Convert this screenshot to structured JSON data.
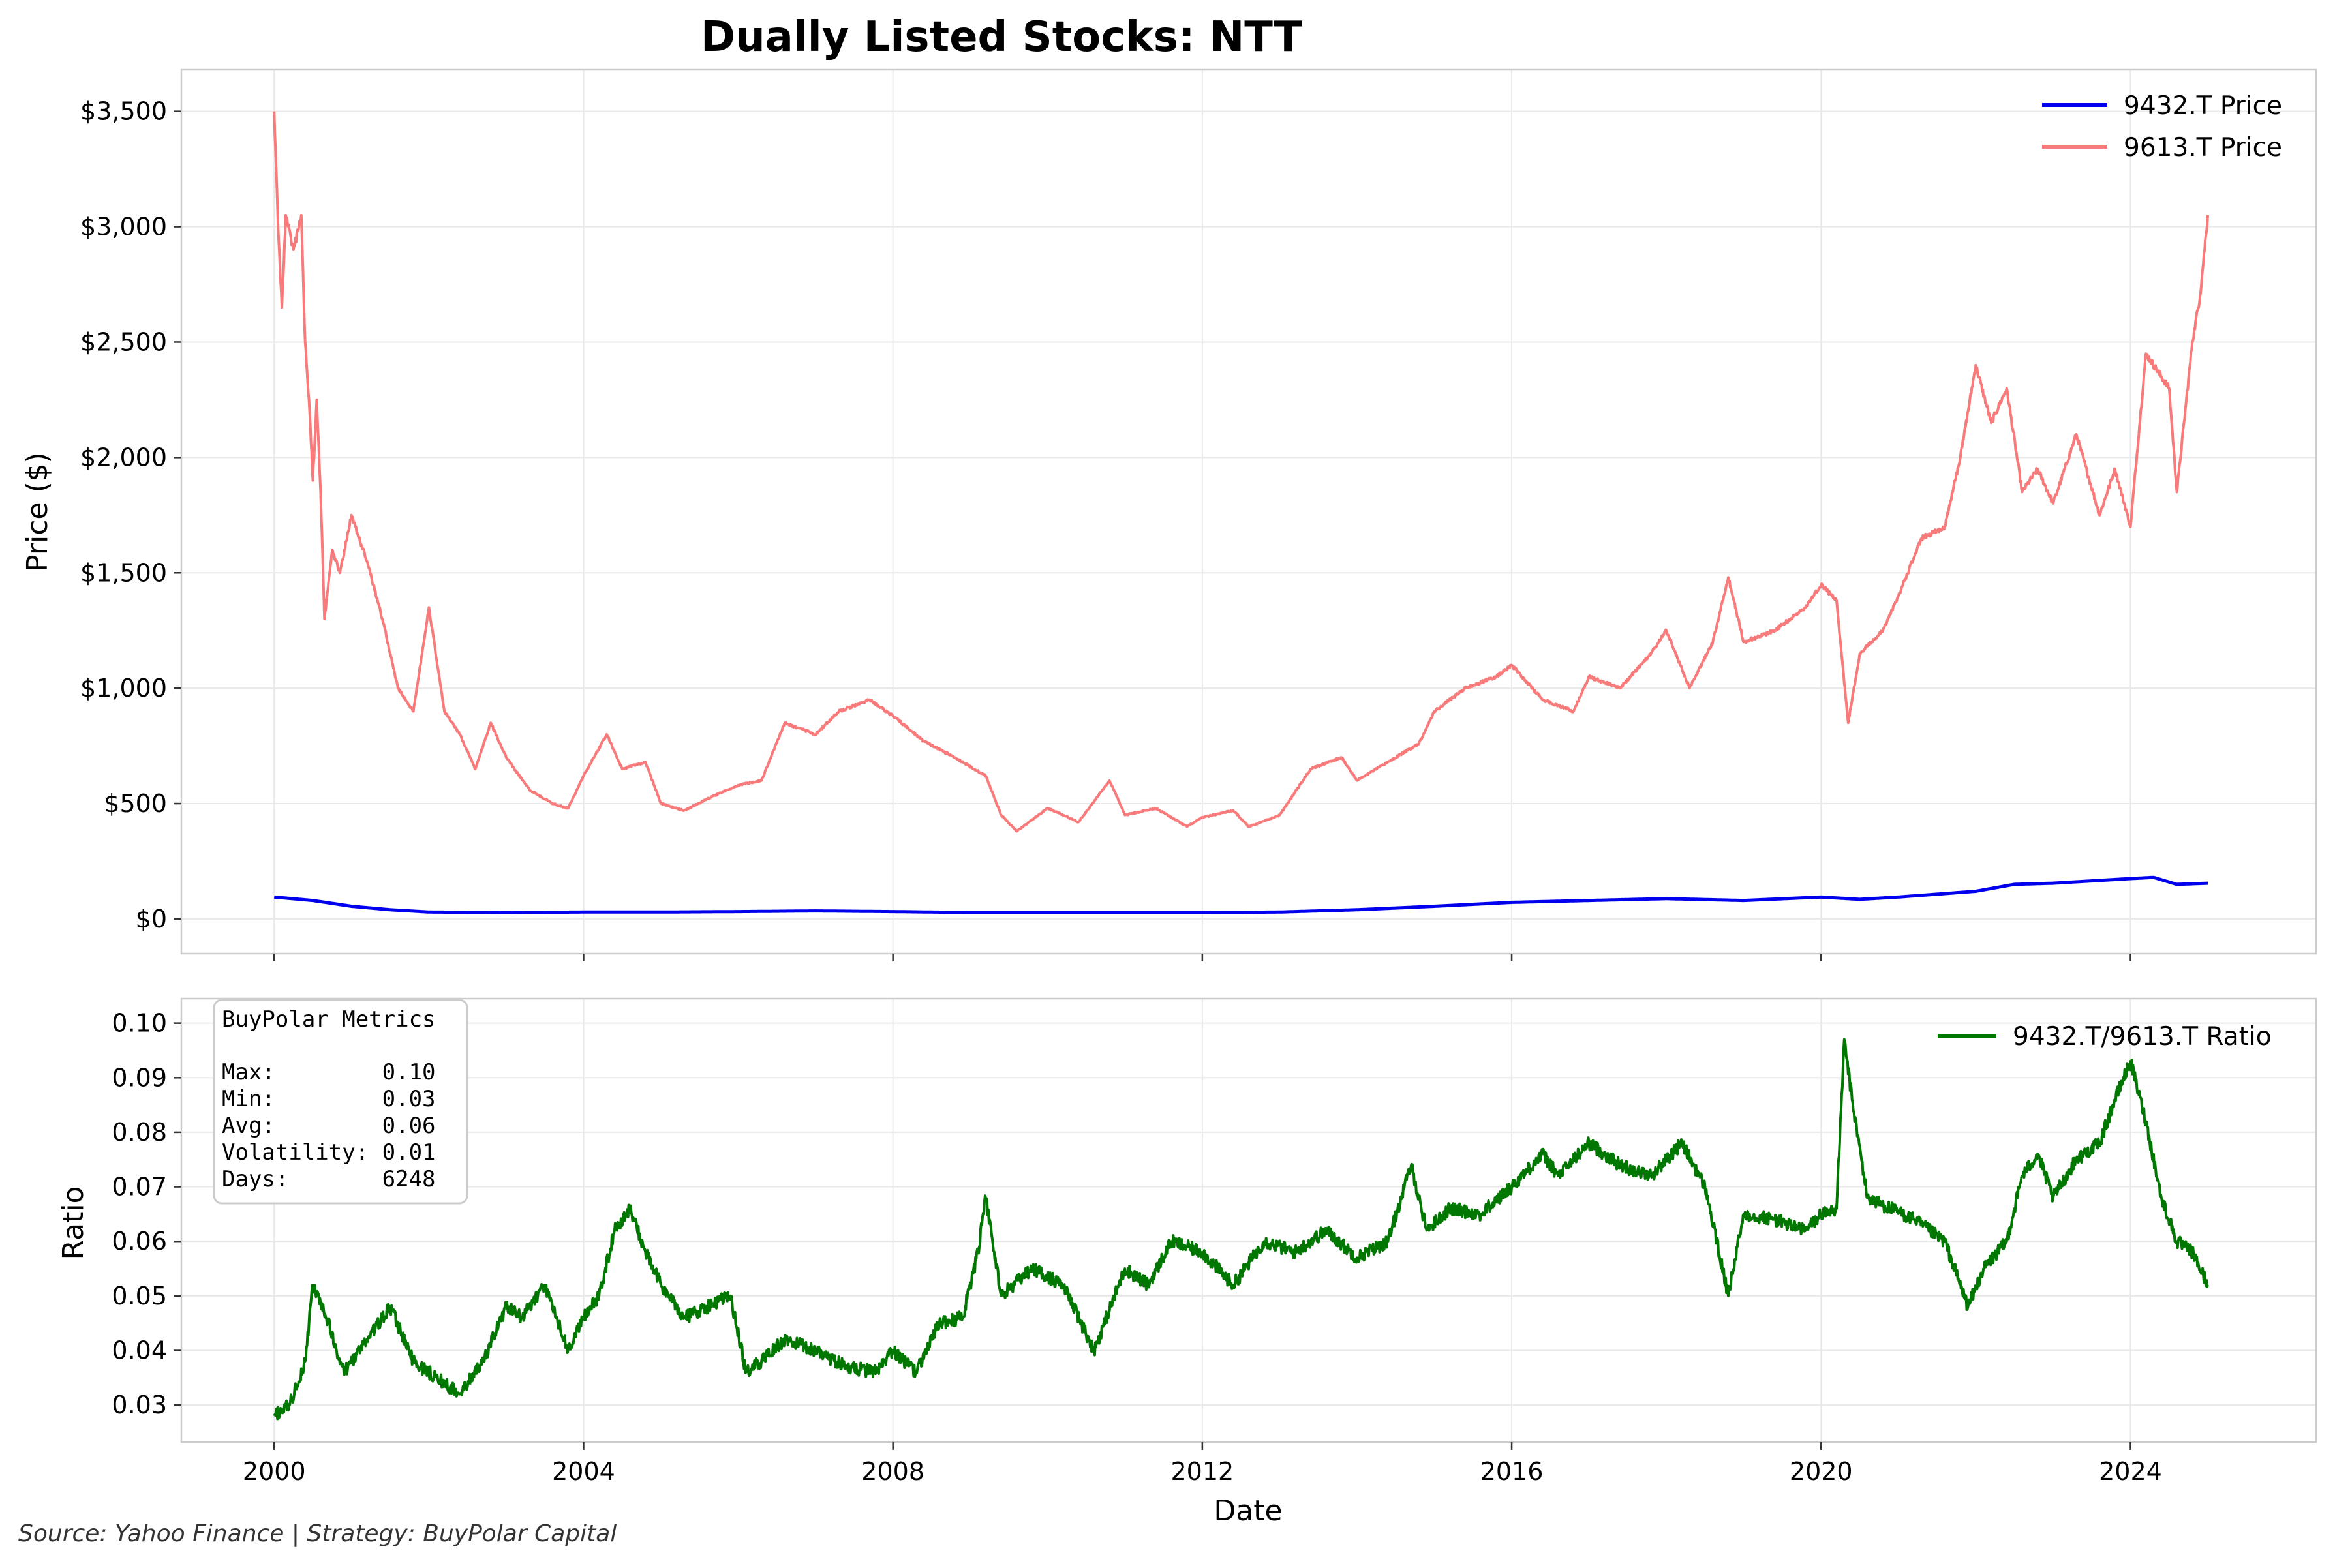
{
  "title": "Dually Listed Stocks: NTT",
  "footer": "Source: Yahoo Finance | Strategy: BuyPolar Capital",
  "colors": {
    "price_a": "#0000ee",
    "price_b": "#f87a7a",
    "ratio": "#007700",
    "grid": "#e8e8e8"
  },
  "metrics_box": {
    "heading": "BuyPolar Metrics",
    "rows": [
      "Max:        0.10",
      "Min:        0.03",
      "Avg:        0.06",
      "Volatility: 0.01",
      "Days:       6248"
    ]
  },
  "chart_data": [
    {
      "type": "line",
      "title": "Dually Listed Stocks: NTT",
      "xlabel": "",
      "ylabel": "Price ($)",
      "x_ticks": [
        "2000",
        "2004",
        "2008",
        "2012",
        "2016",
        "2020",
        "2024"
      ],
      "y_ticks": [
        "$0",
        "$500",
        "$1,000",
        "$1,500",
        "$2,000",
        "$2,500",
        "$3,000",
        "$3,500"
      ],
      "ylim": [
        -150,
        3680
      ],
      "xlim": [
        1998.8,
        2026.4
      ],
      "grid": true,
      "legend_position": "top-right",
      "series": [
        {
          "name": "9432.T Price",
          "color": "#0000ee",
          "points": [
            [
              2000.0,
              95
            ],
            [
              2000.5,
              80
            ],
            [
              2001.0,
              55
            ],
            [
              2001.5,
              40
            ],
            [
              2002.0,
              30
            ],
            [
              2003.0,
              28
            ],
            [
              2004.0,
              30
            ],
            [
              2005.0,
              30
            ],
            [
              2006.0,
              32
            ],
            [
              2007.0,
              35
            ],
            [
              2008.0,
              32
            ],
            [
              2009.0,
              28
            ],
            [
              2010.0,
              28
            ],
            [
              2011.0,
              28
            ],
            [
              2012.0,
              28
            ],
            [
              2013.0,
              30
            ],
            [
              2014.0,
              40
            ],
            [
              2015.0,
              55
            ],
            [
              2016.0,
              72
            ],
            [
              2017.0,
              80
            ],
            [
              2018.0,
              88
            ],
            [
              2019.0,
              80
            ],
            [
              2020.0,
              95
            ],
            [
              2020.5,
              85
            ],
            [
              2021.0,
              95
            ],
            [
              2022.0,
              120
            ],
            [
              2022.5,
              150
            ],
            [
              2023.0,
              155
            ],
            [
              2024.0,
              175
            ],
            [
              2024.3,
              180
            ],
            [
              2024.6,
              150
            ],
            [
              2025.0,
              155
            ]
          ]
        },
        {
          "name": "9613.T Price",
          "color": "#f87a7a",
          "points": [
            [
              2000.0,
              3500
            ],
            [
              2000.05,
              3000
            ],
            [
              2000.1,
              2650
            ],
            [
              2000.15,
              3050
            ],
            [
              2000.25,
              2900
            ],
            [
              2000.35,
              3050
            ],
            [
              2000.4,
              2500
            ],
            [
              2000.45,
              2250
            ],
            [
              2000.5,
              1900
            ],
            [
              2000.55,
              2250
            ],
            [
              2000.6,
              1850
            ],
            [
              2000.65,
              1300
            ],
            [
              2000.75,
              1600
            ],
            [
              2000.85,
              1500
            ],
            [
              2001.0,
              1750
            ],
            [
              2001.2,
              1550
            ],
            [
              2001.4,
              1300
            ],
            [
              2001.6,
              1000
            ],
            [
              2001.8,
              900
            ],
            [
              2002.0,
              1350
            ],
            [
              2002.2,
              900
            ],
            [
              2002.4,
              800
            ],
            [
              2002.6,
              650
            ],
            [
              2002.8,
              850
            ],
            [
              2003.0,
              700
            ],
            [
              2003.3,
              560
            ],
            [
              2003.6,
              500
            ],
            [
              2003.8,
              480
            ],
            [
              2004.0,
              620
            ],
            [
              2004.3,
              800
            ],
            [
              2004.5,
              650
            ],
            [
              2004.8,
              680
            ],
            [
              2005.0,
              500
            ],
            [
              2005.3,
              470
            ],
            [
              2005.6,
              520
            ],
            [
              2006.0,
              580
            ],
            [
              2006.3,
              600
            ],
            [
              2006.6,
              850
            ],
            [
              2007.0,
              800
            ],
            [
              2007.3,
              900
            ],
            [
              2007.7,
              950
            ],
            [
              2008.0,
              880
            ],
            [
              2008.4,
              770
            ],
            [
              2008.8,
              700
            ],
            [
              2009.2,
              620
            ],
            [
              2009.4,
              450
            ],
            [
              2009.6,
              380
            ],
            [
              2010.0,
              480
            ],
            [
              2010.4,
              420
            ],
            [
              2010.8,
              600
            ],
            [
              2011.0,
              450
            ],
            [
              2011.4,
              480
            ],
            [
              2011.8,
              400
            ],
            [
              2012.0,
              440
            ],
            [
              2012.4,
              470
            ],
            [
              2012.6,
              400
            ],
            [
              2013.0,
              450
            ],
            [
              2013.4,
              650
            ],
            [
              2013.8,
              700
            ],
            [
              2014.0,
              600
            ],
            [
              2014.4,
              680
            ],
            [
              2014.8,
              760
            ],
            [
              2015.0,
              900
            ],
            [
              2015.4,
              1000
            ],
            [
              2015.8,
              1050
            ],
            [
              2016.0,
              1100
            ],
            [
              2016.4,
              950
            ],
            [
              2016.8,
              900
            ],
            [
              2017.0,
              1050
            ],
            [
              2017.4,
              1000
            ],
            [
              2017.8,
              1150
            ],
            [
              2018.0,
              1250
            ],
            [
              2018.3,
              1000
            ],
            [
              2018.6,
              1200
            ],
            [
              2018.8,
              1480
            ],
            [
              2019.0,
              1200
            ],
            [
              2019.4,
              1250
            ],
            [
              2019.8,
              1350
            ],
            [
              2020.0,
              1450
            ],
            [
              2020.2,
              1380
            ],
            [
              2020.35,
              850
            ],
            [
              2020.5,
              1150
            ],
            [
              2020.8,
              1250
            ],
            [
              2021.0,
              1400
            ],
            [
              2021.3,
              1650
            ],
            [
              2021.6,
              1700
            ],
            [
              2021.8,
              2000
            ],
            [
              2022.0,
              2400
            ],
            [
              2022.2,
              2150
            ],
            [
              2022.4,
              2300
            ],
            [
              2022.6,
              1850
            ],
            [
              2022.8,
              1950
            ],
            [
              2023.0,
              1800
            ],
            [
              2023.3,
              2100
            ],
            [
              2023.6,
              1750
            ],
            [
              2023.8,
              1950
            ],
            [
              2024.0,
              1700
            ],
            [
              2024.2,
              2450
            ],
            [
              2024.5,
              2300
            ],
            [
              2024.6,
              1850
            ],
            [
              2024.8,
              2500
            ],
            [
              2024.9,
              2700
            ],
            [
              2025.0,
              3050
            ]
          ]
        }
      ]
    },
    {
      "type": "line",
      "xlabel": "Date",
      "ylabel": "Ratio",
      "x_ticks": [
        "2000",
        "2004",
        "2008",
        "2012",
        "2016",
        "2020",
        "2024"
      ],
      "y_ticks": [
        "0.03",
        "0.04",
        "0.05",
        "0.06",
        "0.07",
        "0.08",
        "0.09",
        "0.10"
      ],
      "ylim": [
        0.0232,
        0.1045
      ],
      "xlim": [
        1998.8,
        2026.4
      ],
      "grid": true,
      "legend_position": "top-right",
      "series": [
        {
          "name": "9432.T/9613.T Ratio",
          "color": "#007700",
          "points": [
            [
              2000.0,
              0.028
            ],
            [
              2000.2,
              0.03
            ],
            [
              2000.4,
              0.038
            ],
            [
              2000.5,
              0.052
            ],
            [
              2000.7,
              0.045
            ],
            [
              2000.9,
              0.036
            ],
            [
              2001.2,
              0.042
            ],
            [
              2001.5,
              0.048
            ],
            [
              2001.8,
              0.038
            ],
            [
              2002.0,
              0.036
            ],
            [
              2002.4,
              0.032
            ],
            [
              2002.7,
              0.038
            ],
            [
              2003.0,
              0.048
            ],
            [
              2003.2,
              0.046
            ],
            [
              2003.5,
              0.052
            ],
            [
              2003.8,
              0.04
            ],
            [
              2004.0,
              0.046
            ],
            [
              2004.2,
              0.05
            ],
            [
              2004.4,
              0.062
            ],
            [
              2004.6,
              0.066
            ],
            [
              2004.8,
              0.058
            ],
            [
              2005.0,
              0.052
            ],
            [
              2005.3,
              0.046
            ],
            [
              2005.6,
              0.048
            ],
            [
              2005.9,
              0.05
            ],
            [
              2006.1,
              0.036
            ],
            [
              2006.3,
              0.038
            ],
            [
              2006.6,
              0.042
            ],
            [
              2007.0,
              0.04
            ],
            [
              2007.4,
              0.037
            ],
            [
              2007.8,
              0.036
            ],
            [
              2008.0,
              0.04
            ],
            [
              2008.3,
              0.036
            ],
            [
              2008.6,
              0.045
            ],
            [
              2008.9,
              0.046
            ],
            [
              2009.1,
              0.058
            ],
            [
              2009.2,
              0.068
            ],
            [
              2009.4,
              0.05
            ],
            [
              2009.8,
              0.055
            ],
            [
              2010.2,
              0.052
            ],
            [
              2010.6,
              0.04
            ],
            [
              2011.0,
              0.055
            ],
            [
              2011.3,
              0.052
            ],
            [
              2011.6,
              0.06
            ],
            [
              2012.0,
              0.058
            ],
            [
              2012.4,
              0.052
            ],
            [
              2012.8,
              0.06
            ],
            [
              2013.2,
              0.058
            ],
            [
              2013.6,
              0.062
            ],
            [
              2014.0,
              0.057
            ],
            [
              2014.4,
              0.06
            ],
            [
              2014.7,
              0.074
            ],
            [
              2014.9,
              0.062
            ],
            [
              2015.2,
              0.066
            ],
            [
              2015.6,
              0.065
            ],
            [
              2016.0,
              0.07
            ],
            [
              2016.4,
              0.076
            ],
            [
              2016.6,
              0.072
            ],
            [
              2017.0,
              0.078
            ],
            [
              2017.4,
              0.074
            ],
            [
              2017.8,
              0.072
            ],
            [
              2018.2,
              0.078
            ],
            [
              2018.5,
              0.07
            ],
            [
              2018.8,
              0.05
            ],
            [
              2019.0,
              0.065
            ],
            [
              2019.4,
              0.064
            ],
            [
              2019.8,
              0.062
            ],
            [
              2020.0,
              0.065
            ],
            [
              2020.2,
              0.066
            ],
            [
              2020.3,
              0.097
            ],
            [
              2020.4,
              0.086
            ],
            [
              2020.6,
              0.068
            ],
            [
              2020.9,
              0.066
            ],
            [
              2021.2,
              0.064
            ],
            [
              2021.6,
              0.06
            ],
            [
              2021.9,
              0.048
            ],
            [
              2022.1,
              0.055
            ],
            [
              2022.4,
              0.06
            ],
            [
              2022.6,
              0.072
            ],
            [
              2022.8,
              0.076
            ],
            [
              2023.0,
              0.068
            ],
            [
              2023.3,
              0.075
            ],
            [
              2023.6,
              0.078
            ],
            [
              2023.8,
              0.086
            ],
            [
              2024.0,
              0.093
            ],
            [
              2024.2,
              0.082
            ],
            [
              2024.4,
              0.068
            ],
            [
              2024.6,
              0.06
            ],
            [
              2024.8,
              0.058
            ],
            [
              2025.0,
              0.052
            ]
          ]
        }
      ]
    }
  ]
}
